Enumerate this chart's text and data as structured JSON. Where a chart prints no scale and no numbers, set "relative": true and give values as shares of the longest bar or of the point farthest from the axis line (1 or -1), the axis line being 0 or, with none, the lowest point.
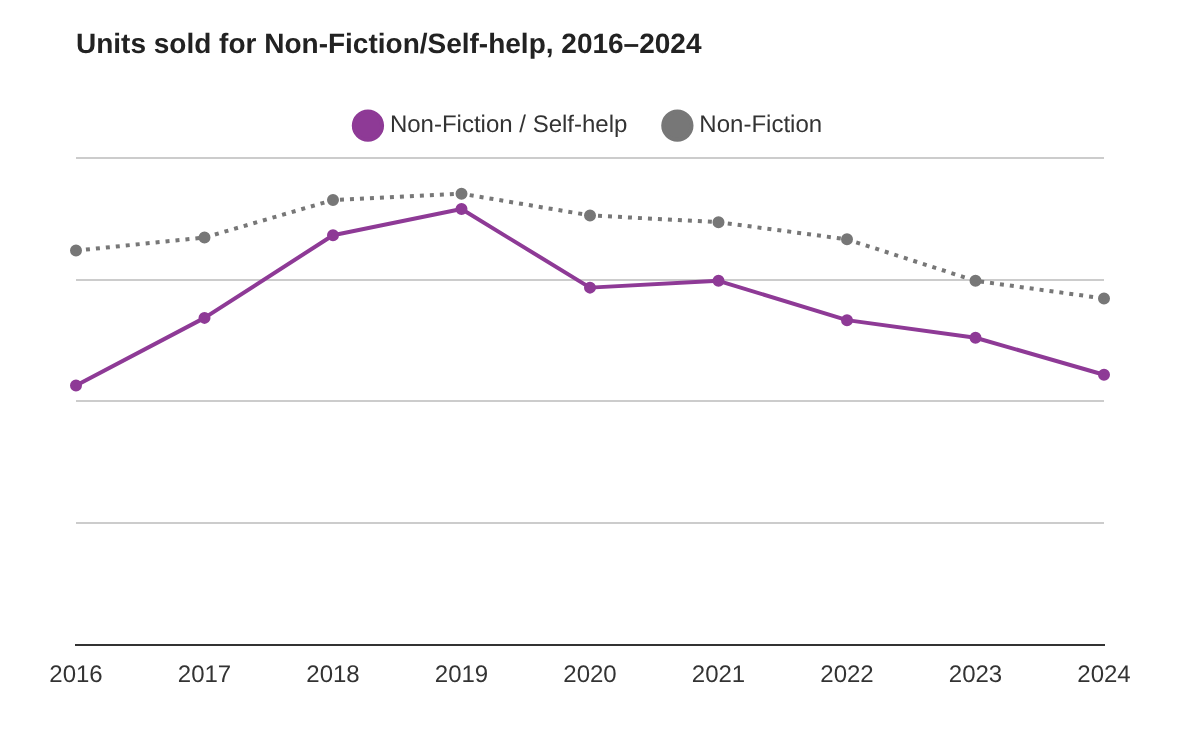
{
  "chart_data": {
    "type": "line",
    "title": "Units sold for Non-Fiction/Self-help, 2016–2024",
    "categories": [
      "2016",
      "2017",
      "2018",
      "2019",
      "2020",
      "2021",
      "2022",
      "2023",
      "2024"
    ],
    "relative": true,
    "grid": "y",
    "legend": "top",
    "marker": "circle",
    "series": [
      {
        "name": "Non-Fiction / Self-help",
        "color": "#8e3a96",
        "line_style": "solid",
        "values": [
          0.575,
          0.725,
          0.908,
          0.966,
          0.792,
          0.807,
          0.72,
          0.681,
          0.599
        ]
      },
      {
        "name": "Non-Fiction",
        "color": "#777777",
        "line_style": "dotted",
        "values": [
          0.874,
          0.903,
          0.986,
          1,
          0.952,
          0.937,
          0.899,
          0.807,
          0.768
        ]
      }
    ]
  }
}
